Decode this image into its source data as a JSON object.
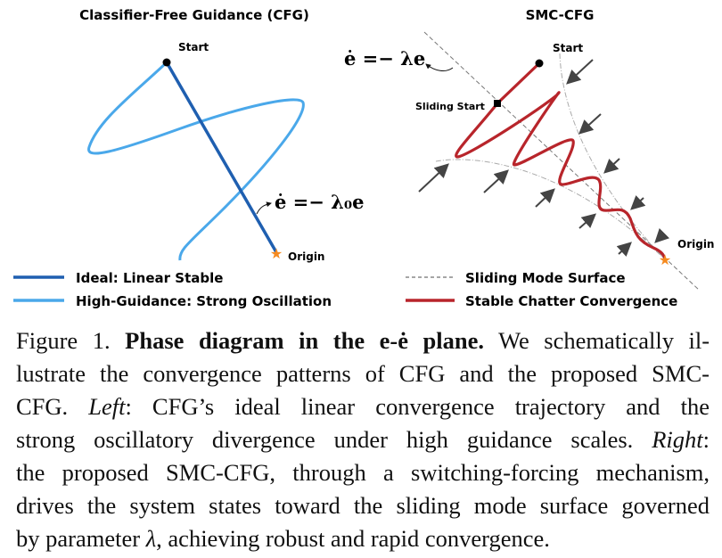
{
  "left_panel": {
    "title": "Classifier-Free Guidance (CFG)",
    "start_label": "Start",
    "origin_label": "Origin",
    "equation": "ė =− λ₀e",
    "legend": [
      {
        "label": "Ideal: Linear Stable",
        "color": "#1f5fb0"
      },
      {
        "label": "High-Guidance: Strong Oscillation",
        "color": "#4aa8ea"
      }
    ]
  },
  "right_panel": {
    "title": "SMC-CFG",
    "start_label": "Start",
    "sliding_start_label": "Sliding Start",
    "origin_label": "Origin",
    "equation": "ė =− λe",
    "legend": [
      {
        "label": "Sliding Mode Surface",
        "color": "#888888"
      },
      {
        "label": "Stable Chatter Convergence",
        "color": "#b8252b"
      }
    ]
  },
  "colors": {
    "origin_star": "#f58a1f",
    "arrows": "#444444"
  },
  "caption": {
    "fig_label": "Figure 1.",
    "bold_title": "Phase diagram in the e-ė plane.",
    "l1_rest": "We schematically il-",
    "l2": "lustrate the convergence patterns of CFG and the proposed SMC-",
    "l3_pre": "CFG.",
    "l3_left": "Left",
    "l3_rest": ":  CFG’s ideal linear convergence trajectory and the",
    "l4_pre": "strong oscillatory divergence under high guidance scales.",
    "l4_right": "Right",
    "l4_colon": ":",
    "l5": "the proposed SMC-CFG, through a switching-forcing mechanism,",
    "l6": "drives the system states toward the sliding mode surface governed",
    "l7_pre": "by parameter",
    "l7_lambda": "λ",
    "l7_rest": ", achieving robust and rapid convergence."
  }
}
